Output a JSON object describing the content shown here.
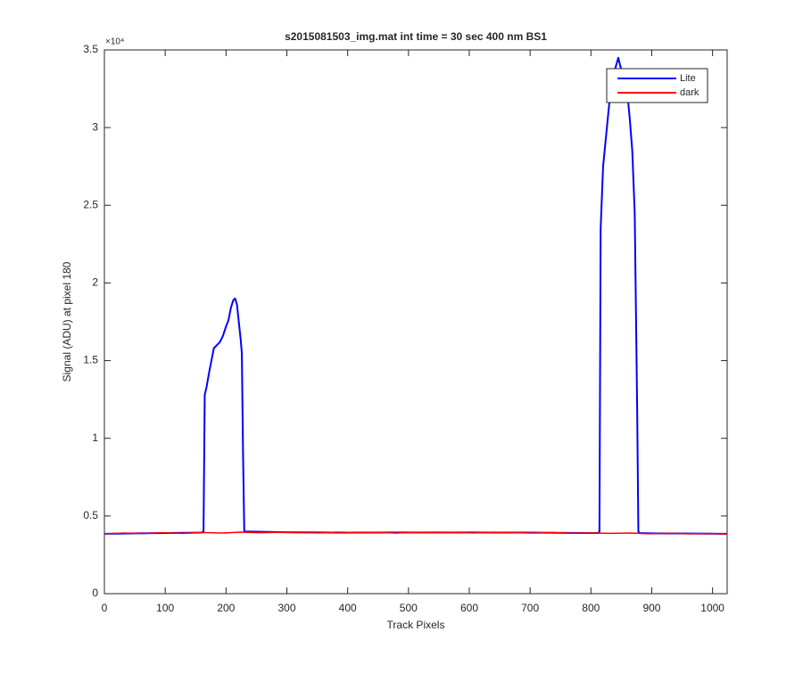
{
  "chart_data": {
    "type": "line",
    "title": "s2015081503_img.mat int time = 30 sec  400 nm BS1",
    "x_label": "Track Pixels",
    "y_label": "Signal (ADU) at pixel 180",
    "y_exponent_label": "×10⁴",
    "xlim": [
      0,
      1024
    ],
    "xticks": [
      0,
      100,
      200,
      300,
      400,
      500,
      600,
      700,
      800,
      900,
      1000
    ],
    "ylim": [
      0,
      3.5
    ],
    "yticks": [
      0,
      0.5,
      1,
      1.5,
      2,
      2.5,
      3,
      3.5
    ],
    "grid": false,
    "legend": "upper right",
    "series": [
      {
        "name": "Lite",
        "color": "#0000ff",
        "x": [
          0,
          50,
          100,
          150,
          160,
          163,
          165,
          168,
          172,
          176,
          180,
          185,
          190,
          195,
          200,
          204,
          208,
          212,
          215,
          218,
          221,
          224,
          226,
          228,
          230,
          300,
          400,
          500,
          600,
          700,
          800,
          812,
          814,
          816,
          820,
          825,
          830,
          835,
          840,
          845,
          848,
          852,
          856,
          860,
          864,
          868,
          872,
          876,
          878,
          880,
          900,
          950,
          1000,
          1024
        ],
        "values": [
          0.385,
          0.388,
          0.39,
          0.392,
          0.393,
          0.4,
          1.28,
          1.33,
          1.42,
          1.5,
          1.58,
          1.6,
          1.62,
          1.66,
          1.72,
          1.76,
          1.84,
          1.89,
          1.9,
          1.86,
          1.75,
          1.64,
          1.55,
          0.9,
          0.4,
          0.395,
          0.393,
          0.394,
          0.394,
          0.393,
          0.39,
          0.39,
          0.4,
          2.35,
          2.75,
          2.95,
          3.15,
          3.3,
          3.38,
          3.45,
          3.4,
          3.35,
          3.3,
          3.22,
          3.05,
          2.85,
          2.45,
          1.2,
          0.4,
          0.39,
          0.388,
          0.387,
          0.386,
          0.385
        ]
      },
      {
        "name": "dark",
        "color": "#ff0000",
        "x": [
          0,
          32,
          64,
          96,
          128,
          160,
          192,
          224,
          256,
          288,
          320,
          352,
          384,
          416,
          448,
          480,
          512,
          544,
          576,
          608,
          640,
          672,
          704,
          736,
          768,
          800,
          832,
          864,
          896,
          928,
          960,
          992,
          1024
        ],
        "values": [
          0.385,
          0.39,
          0.387,
          0.392,
          0.388,
          0.394,
          0.39,
          0.396,
          0.392,
          0.395,
          0.393,
          0.391,
          0.396,
          0.392,
          0.394,
          0.39,
          0.395,
          0.392,
          0.394,
          0.391,
          0.395,
          0.392,
          0.39,
          0.393,
          0.389,
          0.391,
          0.388,
          0.39,
          0.386,
          0.389,
          0.385,
          0.387,
          0.384
        ]
      }
    ]
  }
}
